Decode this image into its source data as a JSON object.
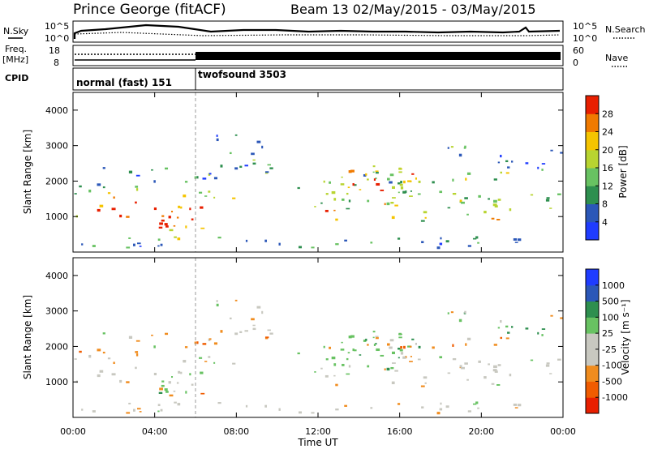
{
  "header": {
    "station": "Prince George (fitACF)",
    "beam_info": "Beam 13 02/May/2015 - 03/May/2015"
  },
  "top_panels": {
    "nsky_label": "N.Sky",
    "nsky_ticks": [
      "10^5",
      "10^0"
    ],
    "nsearch_label": "N.Search",
    "freq_label": "Freq.",
    "freq_unit": "[MHz]",
    "freq_ticks": [
      "18",
      "8"
    ],
    "nave_ticks": [
      "60",
      "0"
    ],
    "nave_label": "Nave",
    "cpid_label": "CPID",
    "cpid_modes": [
      "normal (fast) 151",
      "twofsound 3503"
    ]
  },
  "colors": {
    "power": [
      "#1f3cff",
      "#2b57b8",
      "#2e8f4f",
      "#68c262",
      "#b8d430",
      "#f5c400",
      "#f07a00",
      "#e81f00"
    ],
    "velocity": [
      "#e81f00",
      "#f05c00",
      "#f08c1e",
      "#c8c8c0",
      "#c8c8c0",
      "#68c262",
      "#2e8f4f",
      "#2b57b8",
      "#1f3cff"
    ]
  },
  "chart_data": [
    {
      "type": "heatmap",
      "name": "power",
      "ylabel": "Slant Range [km]",
      "ylim": [
        0,
        4500
      ],
      "yticks": [
        "1000",
        "2000",
        "3000",
        "4000"
      ],
      "colorbar_label": "Power [dB]",
      "colorbar_ticks": [
        "4",
        "8",
        "12",
        "16",
        "20",
        "24",
        "28"
      ]
    },
    {
      "type": "heatmap",
      "name": "velocity",
      "ylabel": "Slant Range [km]",
      "ylim": [
        0,
        4500
      ],
      "yticks": [
        "1000",
        "2000",
        "3000",
        "4000"
      ],
      "xlabel": "Time UT",
      "xticks": [
        "00:00",
        "04:00",
        "08:00",
        "12:00",
        "16:00",
        "20:00",
        "00:00"
      ],
      "colorbar_label": "Velocity [m s⁻¹]",
      "colorbar_ticks": [
        "1000",
        "500",
        "100",
        "25",
        "-25",
        "-100",
        "-500",
        "-1000"
      ]
    }
  ]
}
